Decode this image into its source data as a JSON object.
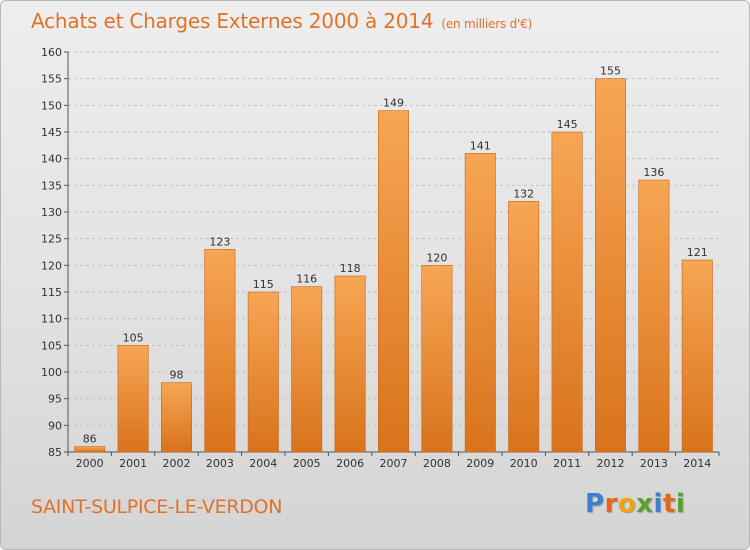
{
  "header": {
    "title": "Achats et Charges Externes 2000 à 2014",
    "unit": "(en milliers d'€)"
  },
  "footer": {
    "place": "SAINT-SULPICE-LE-VERDON",
    "logo": [
      "P",
      "r",
      "o",
      "x",
      "i",
      "t",
      "i"
    ]
  },
  "colors": {
    "bar_light": "#f7a654",
    "bar_dark": "#d9731c",
    "title": "#e0722a",
    "logo": [
      "#3b7fd0",
      "#e8641c",
      "#f0a500",
      "#5aa02c",
      "#3b7fd0",
      "#e8641c",
      "#5aa02c"
    ]
  },
  "chart_data": {
    "type": "bar",
    "title": "Achats et Charges Externes 2000 à 2014",
    "subtitle": "(en milliers d'€)",
    "categories": [
      "2000",
      "2001",
      "2002",
      "2003",
      "2004",
      "2005",
      "2006",
      "2007",
      "2008",
      "2009",
      "2010",
      "2011",
      "2012",
      "2013",
      "2014"
    ],
    "values": [
      86,
      105,
      98,
      123,
      115,
      116,
      118,
      149,
      120,
      141,
      132,
      145,
      155,
      136,
      121
    ],
    "ylim": [
      85,
      160
    ],
    "yticks": [
      85,
      90,
      95,
      100,
      105,
      110,
      115,
      120,
      125,
      130,
      135,
      140,
      145,
      150,
      155,
      160
    ],
    "grid": true,
    "data_labels": true
  }
}
